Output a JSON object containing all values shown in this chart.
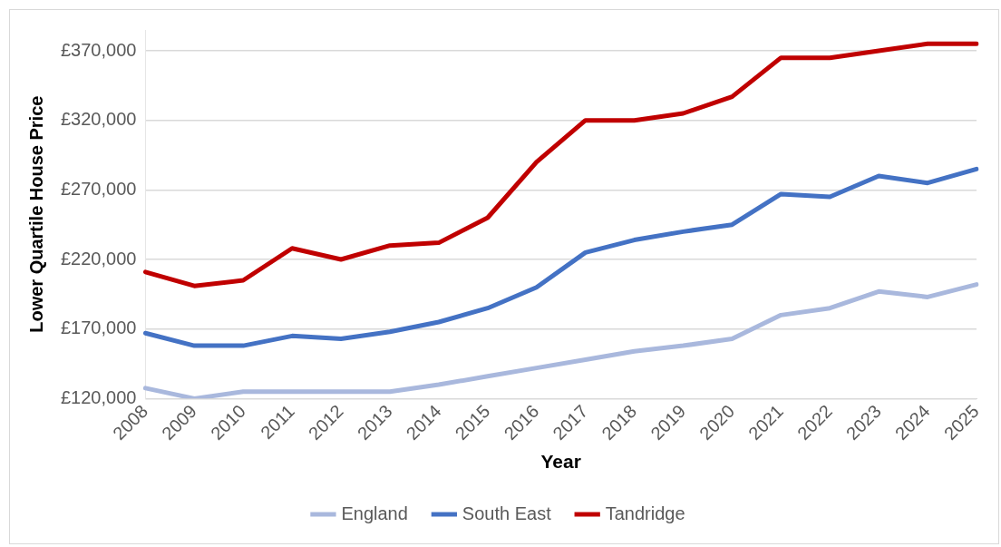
{
  "chart_data": {
    "type": "line",
    "xlabel": "Year",
    "ylabel": "Lower Quartile House Price",
    "categories": [
      "2008",
      "2009",
      "2010",
      "2011",
      "2012",
      "2013",
      "2014",
      "2015",
      "2016",
      "2017",
      "2018",
      "2019",
      "2020",
      "2021",
      "2022",
      "2023",
      "2024",
      "2025"
    ],
    "series": [
      {
        "name": "England",
        "color": "#a9b8dd",
        "values": [
          127500,
          120000,
          125000,
          125000,
          125000,
          125000,
          130000,
          136000,
          142000,
          148000,
          154000,
          158000,
          163000,
          180000,
          185000,
          197000,
          193000,
          202000
        ]
      },
      {
        "name": "South East",
        "color": "#4472c4",
        "values": [
          167000,
          158000,
          158000,
          165000,
          163000,
          168000,
          175000,
          185000,
          200000,
          225000,
          234000,
          240000,
          245000,
          267000,
          265000,
          280000,
          275000,
          285000
        ]
      },
      {
        "name": "Tandridge",
        "color": "#c00000",
        "values": [
          211000,
          201000,
          205000,
          228000,
          220000,
          230000,
          232000,
          250000,
          290000,
          320000,
          320000,
          325000,
          337000,
          365000,
          365000,
          370000,
          375000,
          375000
        ]
      }
    ],
    "ylim": [
      120000,
      385000
    ],
    "yticks": [
      {
        "value": 120000,
        "label": "£120,000"
      },
      {
        "value": 170000,
        "label": "£170,000"
      },
      {
        "value": 220000,
        "label": "£220,000"
      },
      {
        "value": 270000,
        "label": "£270,000"
      },
      {
        "value": 320000,
        "label": "£320,000"
      },
      {
        "value": 370000,
        "label": "£370,000"
      }
    ],
    "grid": "y",
    "legend": "bottom",
    "marker": "none",
    "line_style": "solid"
  }
}
